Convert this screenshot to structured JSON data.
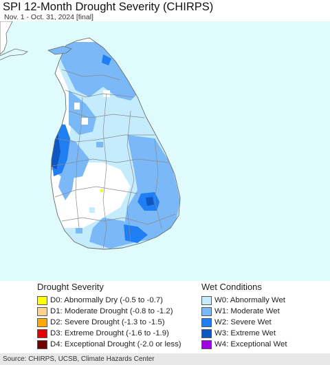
{
  "header": {
    "title": "SPI 12-Month Drought Severity (CHIRPS)",
    "subtitle": "Nov. 1 - Oct. 31, 2024 [final]"
  },
  "map": {
    "sea_color": "#dffbfc",
    "land_color": "#ffffff",
    "border_color": "#6b6b6b",
    "region": "Sri Lanka",
    "symbol_colors": {
      "W0": "#c4ecfd",
      "W1": "#7ab8f7",
      "W2": "#1f7ff2",
      "W3": "#0f56c2",
      "D0": "#ffff00"
    }
  },
  "legend": {
    "drought": {
      "heading": "Drought Severity",
      "items": [
        {
          "code": "D0",
          "label": "D0: Abnormally Dry (-0.5 to -0.7)",
          "color": "#ffff00"
        },
        {
          "code": "D1",
          "label": "D1: Moderate Drought (-0.8 to -1.2)",
          "color": "#fcd38e"
        },
        {
          "code": "D2",
          "label": "D2: Severe Drought (-1.3 to -1.5)",
          "color": "#ffaa00"
        },
        {
          "code": "D3",
          "label": "D3: Extreme Drought (-1.6 to -1.9)",
          "color": "#e60000"
        },
        {
          "code": "D4",
          "label": "D4: Exceptional Drought (-2.0 or less)",
          "color": "#730000"
        }
      ]
    },
    "wet": {
      "heading": "Wet Conditions",
      "items": [
        {
          "code": "W0",
          "label": "W0: Abnormally Wet",
          "color": "#c4ecfd"
        },
        {
          "code": "W1",
          "label": "W1: Moderate Wet",
          "color": "#7ab8f7"
        },
        {
          "code": "W2",
          "label": "W2: Severe Wet",
          "color": "#1f7ff2"
        },
        {
          "code": "W3",
          "label": "W3: Extreme Wet",
          "color": "#0f56c2"
        },
        {
          "code": "W4",
          "label": "W4: Exceptional Wet",
          "color": "#a100e6"
        }
      ]
    }
  },
  "footer": {
    "source": "Source: CHIRPS, UCSB, Climate Hazards Center"
  }
}
